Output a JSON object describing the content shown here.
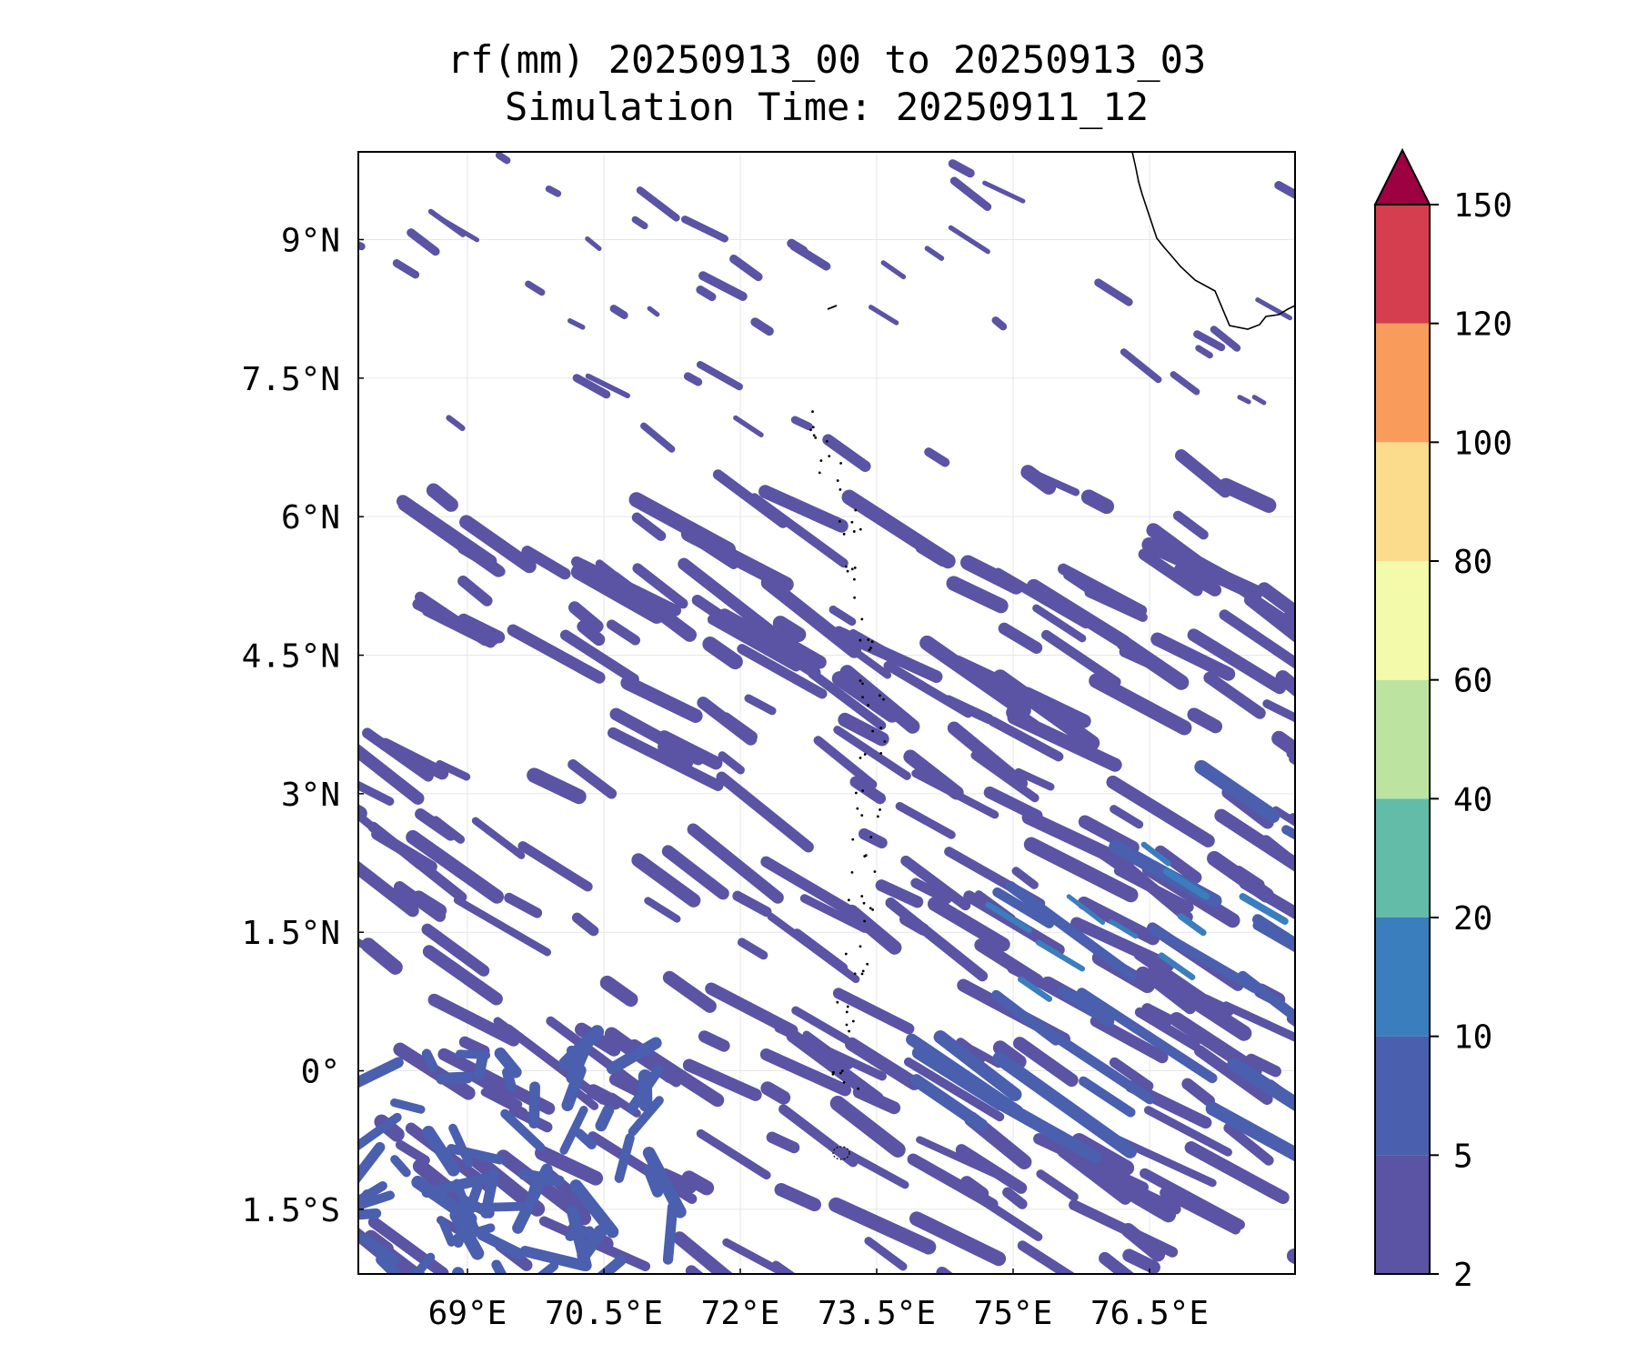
{
  "title": {
    "line1": "rf(mm) 20250913_00 to 20250913_03",
    "line2": "Simulation Time: 20250911_12"
  },
  "map": {
    "lon_range": [
      67.8,
      78.1
    ],
    "lat_range": [
      -2.2,
      9.95
    ],
    "lon_ticks": [
      {
        "value": 69,
        "label": "69°E"
      },
      {
        "value": 70.5,
        "label": "70.5°E"
      },
      {
        "value": 72,
        "label": "72°E"
      },
      {
        "value": 73.5,
        "label": "73.5°E"
      },
      {
        "value": 75,
        "label": "75°E"
      },
      {
        "value": 76.5,
        "label": "76.5°E"
      }
    ],
    "lat_ticks": [
      {
        "value": 9,
        "label": "9°N"
      },
      {
        "value": 7.5,
        "label": "7.5°N"
      },
      {
        "value": 6,
        "label": "6°N"
      },
      {
        "value": 4.5,
        "label": "4.5°N"
      },
      {
        "value": 3,
        "label": "3°N"
      },
      {
        "value": 1.5,
        "label": "1.5°N"
      },
      {
        "value": 0,
        "label": "0°"
      },
      {
        "value": -1.5,
        "label": "1.5°S"
      }
    ],
    "gridlines": true,
    "coastline_color": "#000000",
    "field_primary_color": "#5b53a4",
    "field_secondary_color": "#4a5fae",
    "field_tertiary_color": "#3a7ebd"
  },
  "colorbar": {
    "bounds": [
      2,
      5,
      10,
      20,
      40,
      60,
      80,
      100,
      120,
      150
    ],
    "colors": [
      "#5b53a4",
      "#4a5fae",
      "#3a7ebd",
      "#62bca8",
      "#bde3a1",
      "#f3fbaa",
      "#fbdc8c",
      "#f99c5b",
      "#d53e4f"
    ],
    "extend_color": "#9e0142",
    "extend": "max"
  }
}
